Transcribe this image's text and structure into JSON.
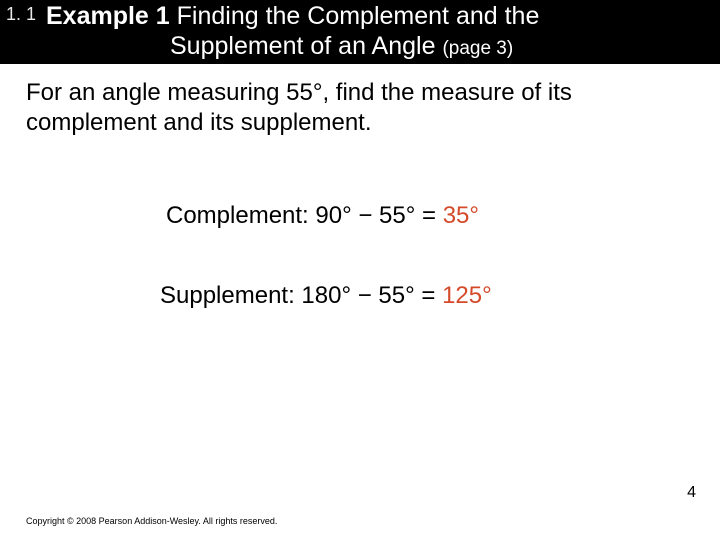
{
  "header": {
    "section_number": "1. 1",
    "example_label": "Example 1",
    "title_rest_line1": " Finding the Complement and the",
    "title_line2_main": "Supplement of an Angle ",
    "page_ref": "(page 3)"
  },
  "prompt": "For an angle measuring 55°, find the measure of its complement and its supplement.",
  "equations": {
    "complement_label": "Complement: 90° − 55° = ",
    "complement_answer": "35°",
    "supplement_label": "Supplement: 180° − 55° = ",
    "supplement_answer": "125°"
  },
  "page_number": "4",
  "copyright": "Copyright © 2008 Pearson Addison-Wesley.  All rights reserved.",
  "colors": {
    "header_bg": "#000000",
    "answer_color": "#d44a2a",
    "text_color": "#000000"
  }
}
